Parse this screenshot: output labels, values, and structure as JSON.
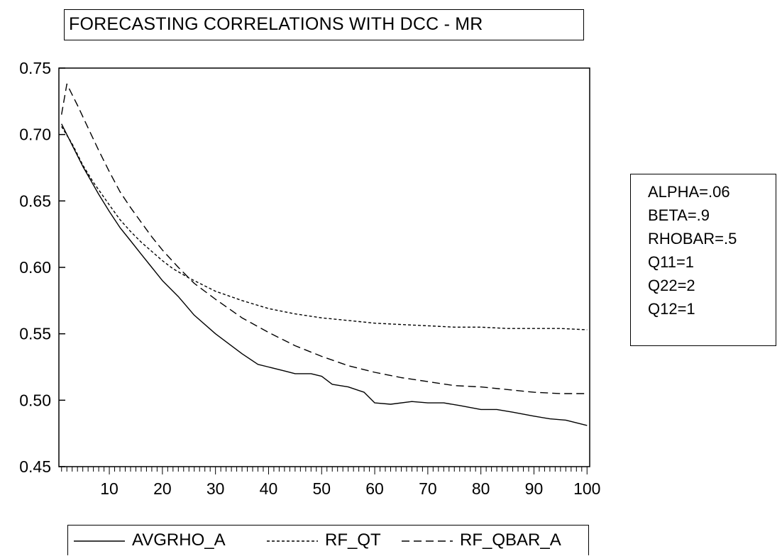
{
  "title": "FORECASTING CORRELATIONS WITH DCC - MR",
  "params": [
    "ALPHA=.06",
    "BETA=.9",
    "RHOBAR=.5",
    "Q11=1",
    "Q22=2",
    "Q12=1"
  ],
  "chart_data": {
    "type": "line",
    "title": "FORECASTING CORRELATIONS WITH DCC - MR",
    "xlabel": "",
    "ylabel": "",
    "xlim": [
      1,
      100
    ],
    "ylim": [
      0.45,
      0.75
    ],
    "x_ticks": [
      10,
      20,
      30,
      40,
      50,
      60,
      70,
      80,
      90,
      100
    ],
    "y_ticks": [
      0.45,
      0.5,
      0.55,
      0.6,
      0.65,
      0.7,
      0.75
    ],
    "y_tick_labels": [
      "0.45",
      "0.50",
      "0.55",
      "0.60",
      "0.65",
      "0.70",
      "0.75"
    ],
    "grid": false,
    "legend_position": "bottom",
    "series": [
      {
        "name": "AVGRHO_A",
        "style": "solid",
        "x": [
          1,
          3,
          5,
          8,
          10,
          12,
          14,
          16,
          18,
          20,
          23,
          26,
          30,
          35,
          38,
          40,
          43,
          45,
          48,
          50,
          52,
          55,
          58,
          60,
          63,
          67,
          70,
          73,
          76,
          80,
          83,
          86,
          90,
          93,
          96,
          98,
          100
        ],
        "y": [
          0.708,
          0.692,
          0.676,
          0.655,
          0.642,
          0.63,
          0.62,
          0.61,
          0.6,
          0.59,
          0.578,
          0.564,
          0.55,
          0.535,
          0.527,
          0.525,
          0.522,
          0.52,
          0.52,
          0.518,
          0.512,
          0.51,
          0.506,
          0.498,
          0.497,
          0.499,
          0.498,
          0.498,
          0.496,
          0.493,
          0.493,
          0.491,
          0.488,
          0.486,
          0.485,
          0.483,
          0.481
        ]
      },
      {
        "name": "RF_QT",
        "style": "short-dash",
        "x": [
          1,
          3,
          5,
          7,
          10,
          12,
          14,
          16,
          18,
          20,
          22,
          25,
          28,
          30,
          35,
          40,
          45,
          50,
          55,
          60,
          65,
          70,
          75,
          80,
          85,
          90,
          95,
          100
        ],
        "y": [
          0.706,
          0.693,
          0.677,
          0.664,
          0.647,
          0.636,
          0.627,
          0.619,
          0.612,
          0.605,
          0.599,
          0.592,
          0.586,
          0.582,
          0.575,
          0.569,
          0.565,
          0.562,
          0.56,
          0.558,
          0.557,
          0.556,
          0.555,
          0.555,
          0.554,
          0.554,
          0.554,
          0.553
        ]
      },
      {
        "name": "RF_QBAR_A",
        "style": "long-dash",
        "x": [
          1,
          2,
          4,
          6,
          8,
          10,
          12,
          14,
          16,
          18,
          20,
          23,
          26,
          30,
          35,
          40,
          45,
          50,
          55,
          60,
          65,
          70,
          75,
          80,
          85,
          90,
          95,
          100
        ],
        "y": [
          0.715,
          0.738,
          0.722,
          0.705,
          0.688,
          0.672,
          0.657,
          0.645,
          0.634,
          0.623,
          0.613,
          0.6,
          0.588,
          0.576,
          0.562,
          0.551,
          0.541,
          0.533,
          0.526,
          0.521,
          0.517,
          0.514,
          0.511,
          0.51,
          0.508,
          0.506,
          0.505,
          0.505
        ]
      }
    ]
  }
}
